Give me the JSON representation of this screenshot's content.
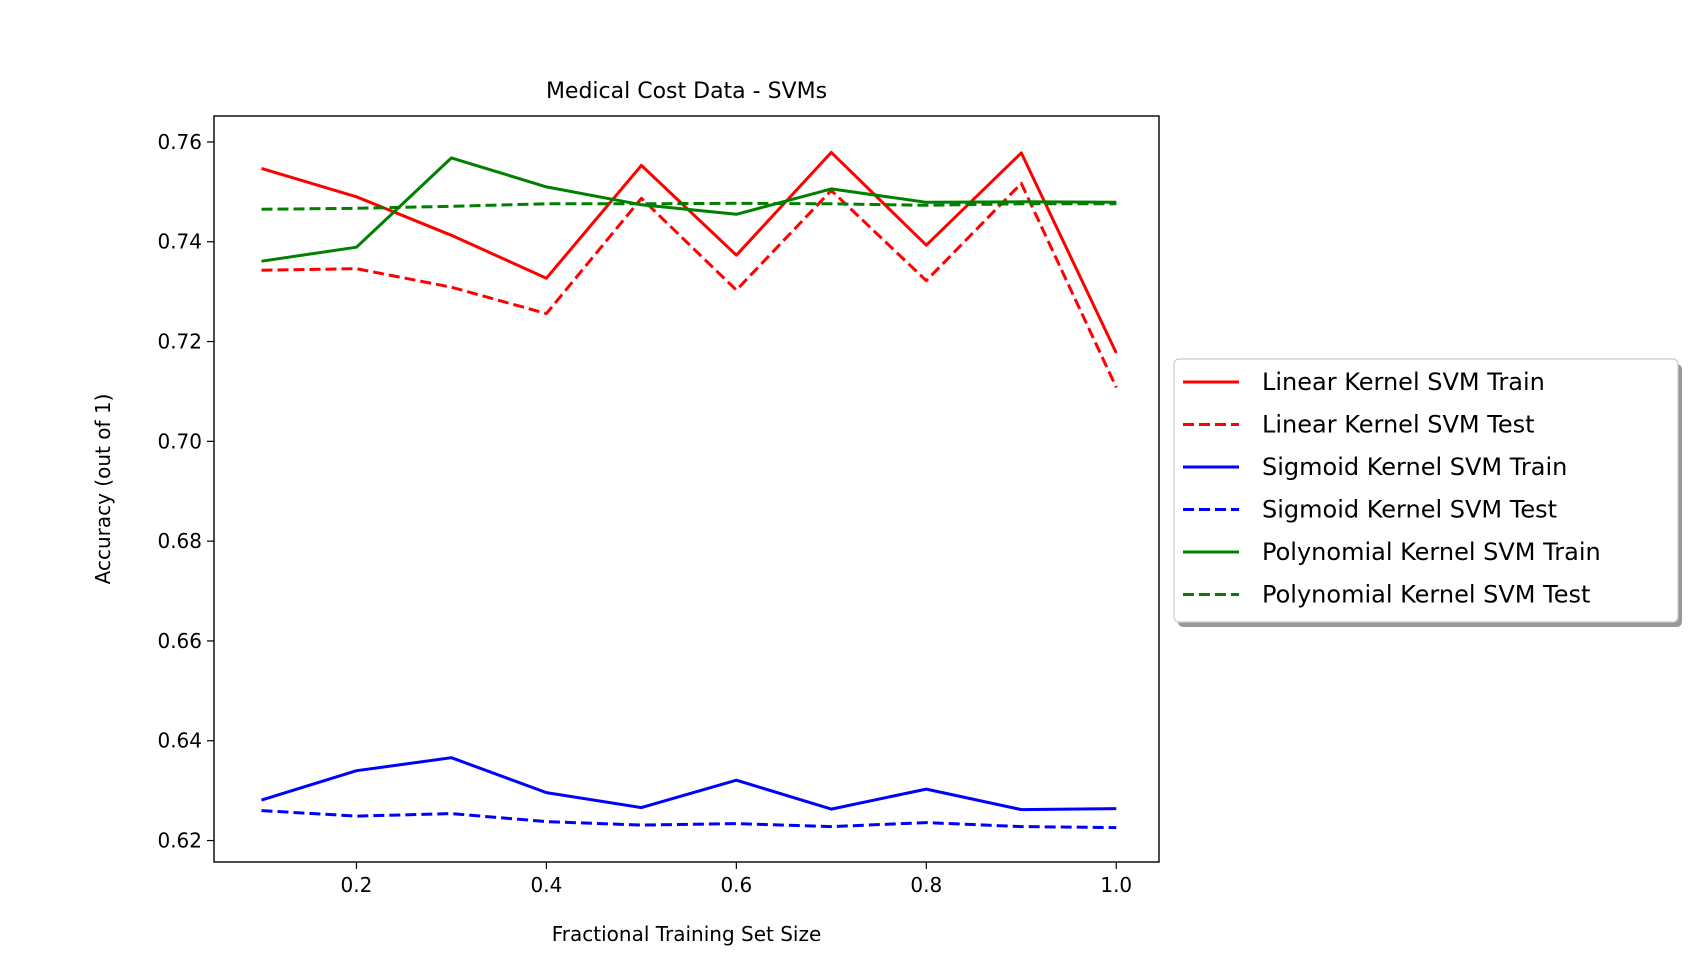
{
  "chart_data": {
    "type": "line",
    "title": "Medical Cost Data - SVMs",
    "xlabel": "Fractional Training Set Size",
    "ylabel": "Accuracy (out of 1)",
    "xlim": [
      0.05,
      1.045
    ],
    "ylim": [
      0.6157,
      0.7652
    ],
    "xticks": [
      0.2,
      0.4,
      0.6,
      0.8,
      1.0
    ],
    "xtick_labels": [
      "0.2",
      "0.4",
      "0.6",
      "0.8",
      "1.0"
    ],
    "yticks": [
      0.62,
      0.64,
      0.66,
      0.68,
      0.7,
      0.72,
      0.74,
      0.76
    ],
    "ytick_labels": [
      "0.62",
      "0.64",
      "0.66",
      "0.68",
      "0.70",
      "0.72",
      "0.74",
      "0.76"
    ],
    "grid": false,
    "legend_position": "outside-right",
    "x": [
      0.1,
      0.2,
      0.3,
      0.4,
      0.5,
      0.6,
      0.7,
      0.8,
      0.9,
      1.0
    ],
    "series": [
      {
        "name": "Linear Kernel SVM Train",
        "color": "#ff0000",
        "dashed": false,
        "values": [
          0.7547,
          0.749,
          0.7413,
          0.7327,
          0.7553,
          0.7373,
          0.7579,
          0.7393,
          0.7578,
          0.7177
        ]
      },
      {
        "name": "Linear Kernel SVM Test",
        "color": "#ff0000",
        "dashed": true,
        "values": [
          0.7343,
          0.7346,
          0.7309,
          0.7256,
          0.7487,
          0.7303,
          0.7503,
          0.7322,
          0.7517,
          0.7108
        ]
      },
      {
        "name": "Sigmoid Kernel SVM Train",
        "color": "#0000ff",
        "dashed": false,
        "values": [
          0.6281,
          0.634,
          0.6366,
          0.6296,
          0.6266,
          0.6321,
          0.6263,
          0.6303,
          0.6262,
          0.6264
        ]
      },
      {
        "name": "Sigmoid Kernel SVM Test",
        "color": "#0000ff",
        "dashed": true,
        "values": [
          0.626,
          0.6249,
          0.6254,
          0.6238,
          0.6231,
          0.6234,
          0.6228,
          0.6236,
          0.6228,
          0.6226
        ]
      },
      {
        "name": "Polynomial Kernel SVM Train",
        "color": "#008000",
        "dashed": false,
        "values": [
          0.7361,
          0.7389,
          0.7568,
          0.751,
          0.7474,
          0.7455,
          0.7506,
          0.7479,
          0.748,
          0.7479
        ]
      },
      {
        "name": "Polynomial Kernel SVM Test",
        "color": "#008000",
        "dashed": true,
        "values": [
          0.7465,
          0.7467,
          0.7471,
          0.7476,
          0.7476,
          0.7477,
          0.7476,
          0.7473,
          0.7476,
          0.7476
        ]
      }
    ]
  }
}
